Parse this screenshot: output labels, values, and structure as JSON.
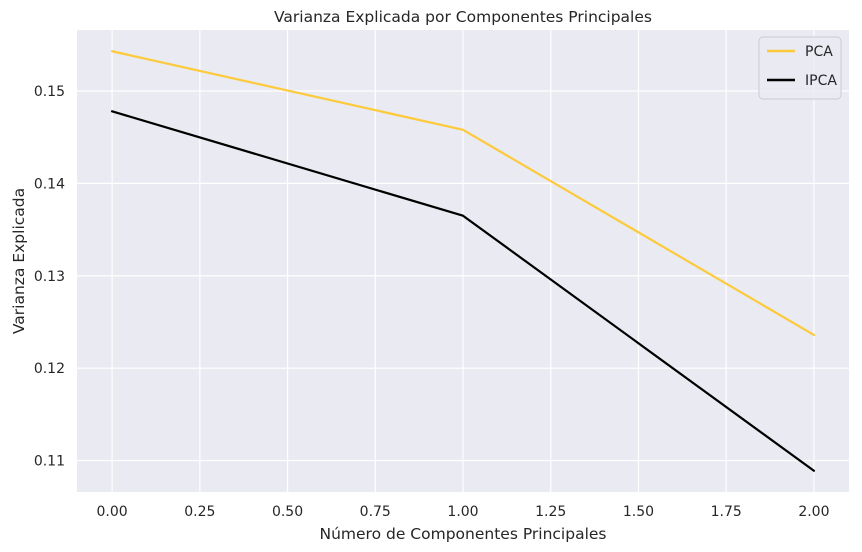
{
  "chart_data": {
    "type": "line",
    "title": "Varianza Explicada por Componentes Principales",
    "xlabel": "Número de Componentes Principales",
    "ylabel": "Varianza Explicada",
    "x": [
      0,
      1,
      2
    ],
    "xlim": [
      -0.1,
      2.1
    ],
    "ylim": [
      0.1066,
      0.1566
    ],
    "xticks": [
      0.0,
      0.25,
      0.5,
      0.75,
      1.0,
      1.25,
      1.5,
      1.75,
      2.0
    ],
    "xtick_labels": [
      "0.00",
      "0.25",
      "0.50",
      "0.75",
      "1.00",
      "1.25",
      "1.50",
      "1.75",
      "2.00"
    ],
    "yticks": [
      0.11,
      0.12,
      0.13,
      0.14,
      0.15
    ],
    "ytick_labels": [
      "0.11",
      "0.12",
      "0.13",
      "0.14",
      "0.15"
    ],
    "grid": true,
    "legend_position": "top-right",
    "background_color": "#eaeaf2",
    "grid_color": "#ffffff",
    "series": [
      {
        "name": "PCA",
        "color": "#fcca3a",
        "values": [
          0.1543,
          0.1458,
          0.1236
        ]
      },
      {
        "name": "IPCA",
        "color": "#000000",
        "values": [
          0.1478,
          0.1365,
          0.1089
        ]
      }
    ]
  }
}
